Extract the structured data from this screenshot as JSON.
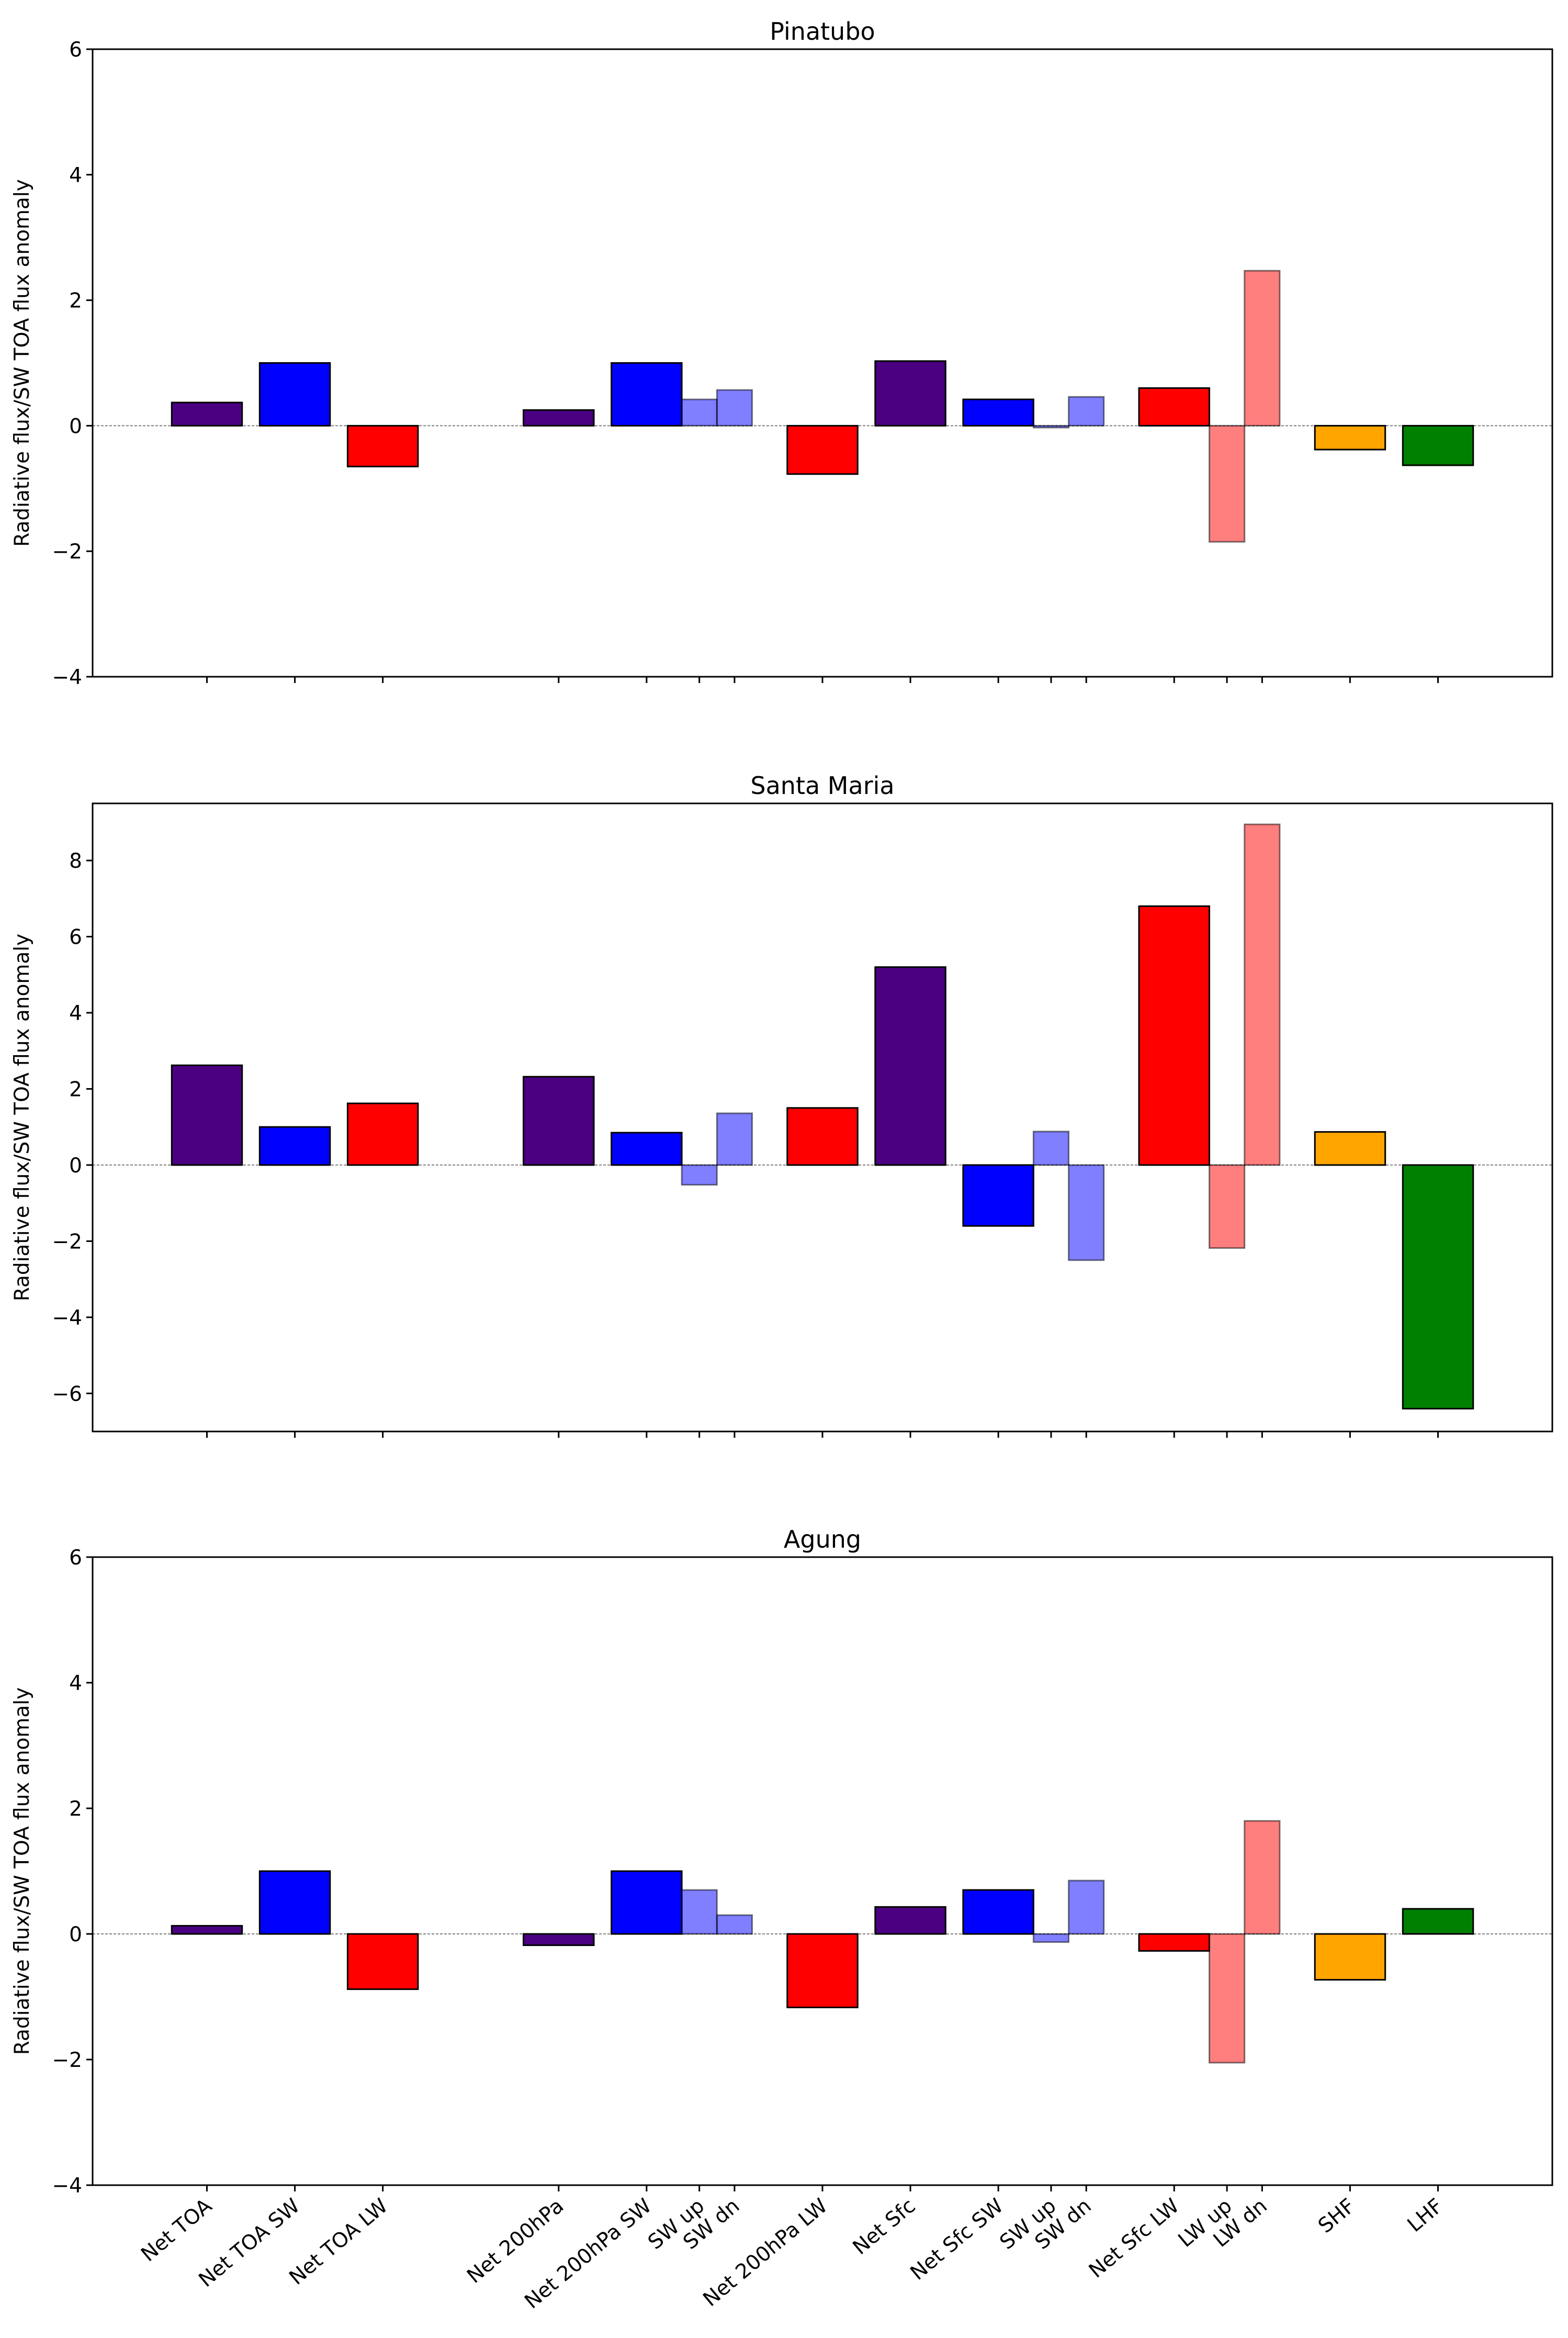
{
  "categories": [
    "Net TOA",
    "Net TOA SW",
    "Net TOA LW",
    "Net 200hPa",
    "Net 200hPa SW",
    "SW up",
    "SW dn",
    "Net 200hPa LW",
    "Net Sfc",
    "Net Sfc SW",
    "SW up",
    "SW dn",
    "Net Sfc LW",
    "LW up",
    "LW dn",
    "SHF",
    "LHF"
  ],
  "bar_styles": [
    {
      "color": "#4b0082",
      "alpha": 1.0,
      "kind": "main"
    },
    {
      "color": "#0000ff",
      "alpha": 1.0,
      "kind": "main"
    },
    {
      "color": "#ff0000",
      "alpha": 1.0,
      "kind": "main"
    },
    {
      "color": "#4b0082",
      "alpha": 1.0,
      "kind": "main"
    },
    {
      "color": "#0000ff",
      "alpha": 1.0,
      "kind": "main"
    },
    {
      "color": "#0000ff",
      "alpha": 0.5,
      "kind": "component"
    },
    {
      "color": "#0000ff",
      "alpha": 0.5,
      "kind": "component"
    },
    {
      "color": "#ff0000",
      "alpha": 1.0,
      "kind": "main"
    },
    {
      "color": "#4b0082",
      "alpha": 1.0,
      "kind": "main"
    },
    {
      "color": "#0000ff",
      "alpha": 1.0,
      "kind": "main"
    },
    {
      "color": "#0000ff",
      "alpha": 0.5,
      "kind": "component"
    },
    {
      "color": "#0000ff",
      "alpha": 0.5,
      "kind": "component"
    },
    {
      "color": "#ff0000",
      "alpha": 1.0,
      "kind": "main"
    },
    {
      "color": "#ff0000",
      "alpha": 0.5,
      "kind": "component"
    },
    {
      "color": "#ff0000",
      "alpha": 0.5,
      "kind": "component"
    },
    {
      "color": "#ffa500",
      "alpha": 1.0,
      "kind": "main"
    },
    {
      "color": "#008000",
      "alpha": 1.0,
      "kind": "main"
    }
  ],
  "chart_data": [
    {
      "type": "bar",
      "title": "Pinatubo",
      "ylabel": "Radiative flux/SW TOA flux anomaly",
      "ylim": [
        -4,
        6
      ],
      "yticks": [
        -4,
        -2,
        0,
        2,
        4,
        6
      ],
      "values": [
        0.37,
        1.0,
        -0.65,
        0.25,
        1.0,
        0.42,
        0.57,
        -0.77,
        1.03,
        0.42,
        -0.03,
        0.46,
        0.6,
        -1.85,
        2.47,
        -0.38,
        -0.63
      ]
    },
    {
      "type": "bar",
      "title": "Santa Maria",
      "ylabel": "Radiative flux/SW TOA flux anomaly",
      "ylim": [
        -7,
        9.5
      ],
      "yticks": [
        -6,
        -4,
        -2,
        0,
        2,
        4,
        6,
        8
      ],
      "values": [
        2.62,
        1.0,
        1.62,
        2.32,
        0.85,
        -0.52,
        1.36,
        1.5,
        5.2,
        -1.6,
        0.88,
        -2.5,
        6.8,
        -2.18,
        8.95,
        0.87,
        -6.4
      ]
    },
    {
      "type": "bar",
      "title": "Agung",
      "ylabel": "Radiative flux/SW TOA flux anomaly",
      "ylim": [
        -4,
        6
      ],
      "yticks": [
        -4,
        -2,
        0,
        2,
        4,
        6
      ],
      "values": [
        0.13,
        1.0,
        -0.88,
        -0.18,
        1.0,
        0.7,
        0.3,
        -1.17,
        0.43,
        0.7,
        -0.13,
        0.85,
        -0.27,
        -2.05,
        1.8,
        -0.73,
        0.4
      ]
    }
  ]
}
